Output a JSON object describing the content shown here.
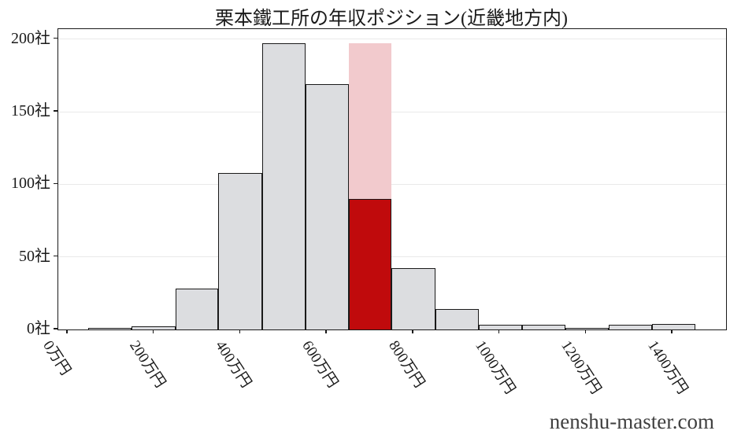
{
  "watermark": "nenshu-master.com",
  "chart_data": {
    "type": "bar",
    "subtype": "histogram",
    "title": "栗本鐵工所の年収ポジション(近畿地方内)",
    "xlabel": "",
    "ylabel": "",
    "x_unit": "万円",
    "y_unit": "社",
    "bin_edges": [
      48,
      148,
      249,
      349,
      450,
      550,
      650,
      750,
      851,
      951,
      1051,
      1152,
      1252,
      1353,
      1453
    ],
    "counts": [
      1,
      2,
      28,
      108,
      197,
      169,
      90,
      42,
      14,
      3,
      3,
      1,
      3,
      4
    ],
    "highlight_bin_index": 6,
    "highlight_bin_range_label": "650万円-750万円",
    "highlight_overlay_value": 197,
    "x_ticks": [
      0,
      200,
      400,
      600,
      800,
      1000,
      1200,
      1400
    ],
    "x_tick_labels": [
      "0万円",
      "200万円",
      "400万円",
      "600万円",
      "800万円",
      "1000万円",
      "1200万円",
      "1400万円"
    ],
    "y_ticks": [
      0,
      50,
      100,
      150,
      200
    ],
    "y_tick_labels": [
      "0社",
      "50社",
      "100社",
      "150社",
      "200社"
    ],
    "xlim": [
      -22,
      1524
    ],
    "ylim": [
      0,
      206.9
    ],
    "grid": "horizontal-only",
    "legend": "none",
    "colors": {
      "bar_fill": "#dcdde0",
      "bar_edge": "#1a1a1a",
      "highlight_fill": "#c00a0c",
      "highlight_overlay_fill": "#f2cacd",
      "grid": "#e9e9e9",
      "spine": "#1a1a1a",
      "text": "#1a1a1a"
    }
  }
}
